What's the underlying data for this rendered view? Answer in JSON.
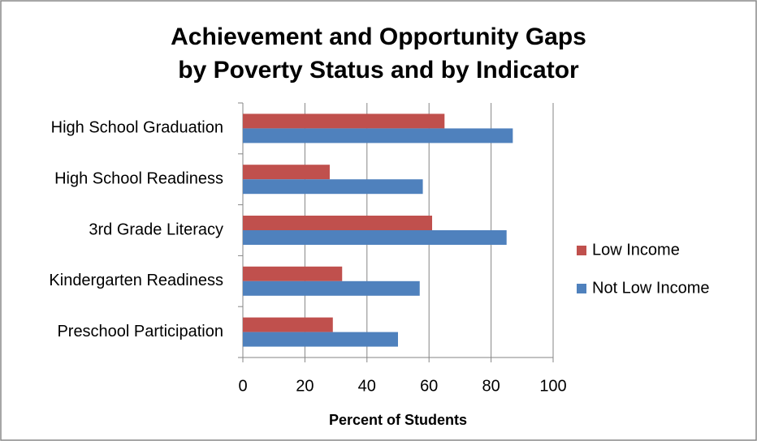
{
  "chart_data": {
    "type": "hbar",
    "title": [
      "Achievement and Opportunity Gaps",
      "by Poverty Status and by Indicator"
    ],
    "x_label": "Percent of Students",
    "categories": [
      "High School Graduation",
      "High School Readiness",
      "3rd Grade Literacy",
      "Kindergarten Readiness",
      "Preschool Participation"
    ],
    "series": [
      {
        "name": "Low Income",
        "color": "#c0504d",
        "values": [
          65,
          28,
          61,
          32,
          29
        ]
      },
      {
        "name": "Not Low Income",
        "color": "#4f81bd",
        "values": [
          87,
          58,
          85,
          57,
          50
        ]
      }
    ],
    "xlim": [
      0,
      100
    ],
    "xticks": [
      0,
      20,
      40,
      60,
      80,
      100
    ],
    "grid": true,
    "legend": "right"
  }
}
